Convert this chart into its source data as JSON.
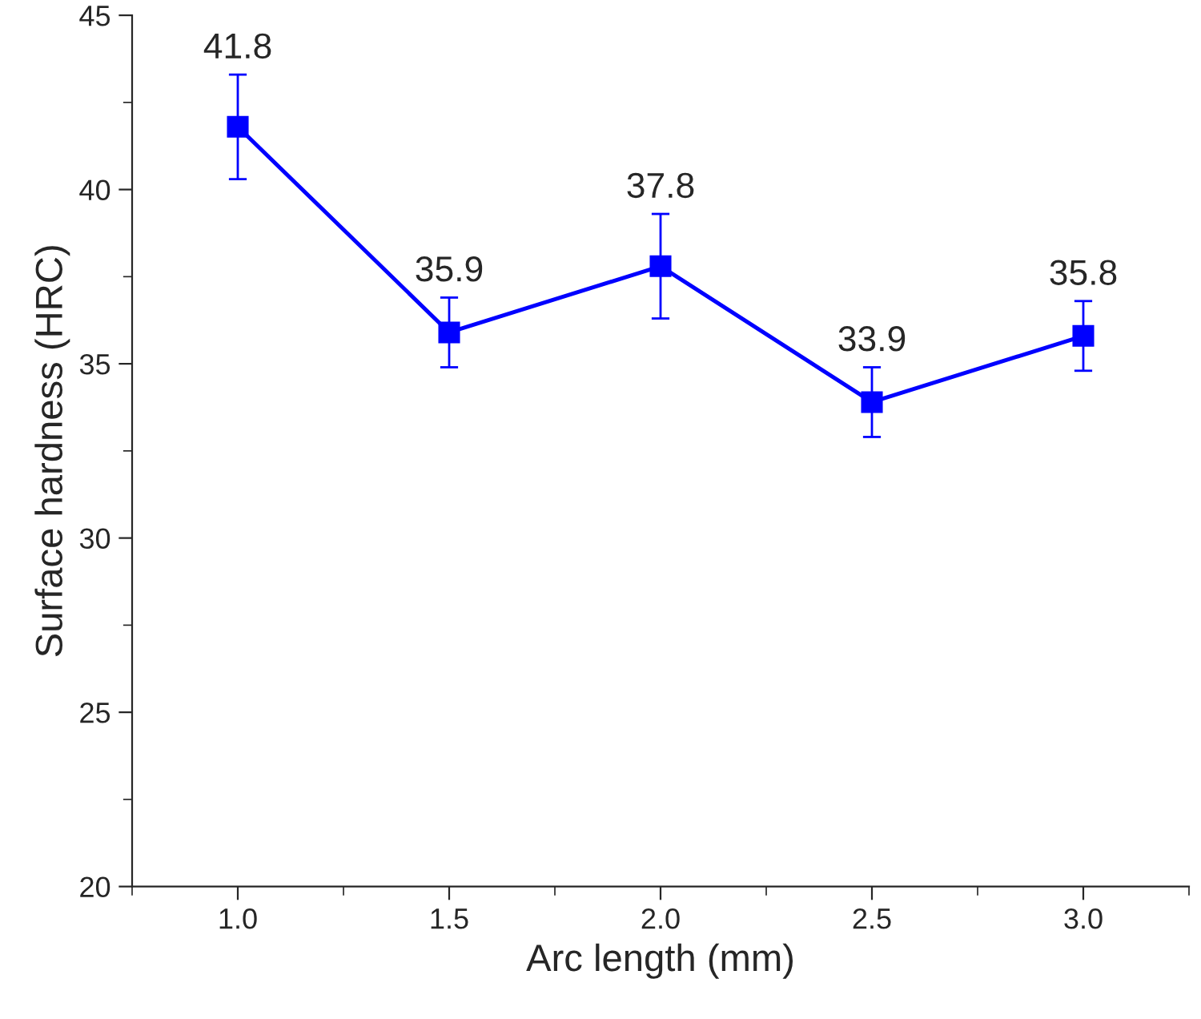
{
  "chart_data": {
    "type": "line",
    "xlabel": "Arc length (mm)",
    "ylabel": "Surface hardness (HRC)",
    "x": [
      1.0,
      1.5,
      2.0,
      2.5,
      3.0
    ],
    "series": [
      {
        "color": "#0000ff",
        "values": [
          41.8,
          35.9,
          37.8,
          33.9,
          35.8
        ],
        "errors": [
          1.5,
          1.0,
          1.5,
          1.0,
          1.0
        ]
      }
    ],
    "xlim": [
      0.75,
      3.25
    ],
    "xticks": [
      {
        "value": 1.0,
        "label": "1.0"
      },
      {
        "value": 1.5,
        "label": "1.5"
      },
      {
        "value": 2.0,
        "label": "2.0"
      },
      {
        "value": 2.5,
        "label": "2.5"
      },
      {
        "value": 3.0,
        "label": "3.0"
      }
    ],
    "ylim": [
      20,
      45
    ],
    "yticks": [
      20,
      25,
      30,
      35,
      40,
      45
    ],
    "data_labels": true,
    "marker": "square",
    "line_style": "solid",
    "grid": false,
    "legend": false
  }
}
